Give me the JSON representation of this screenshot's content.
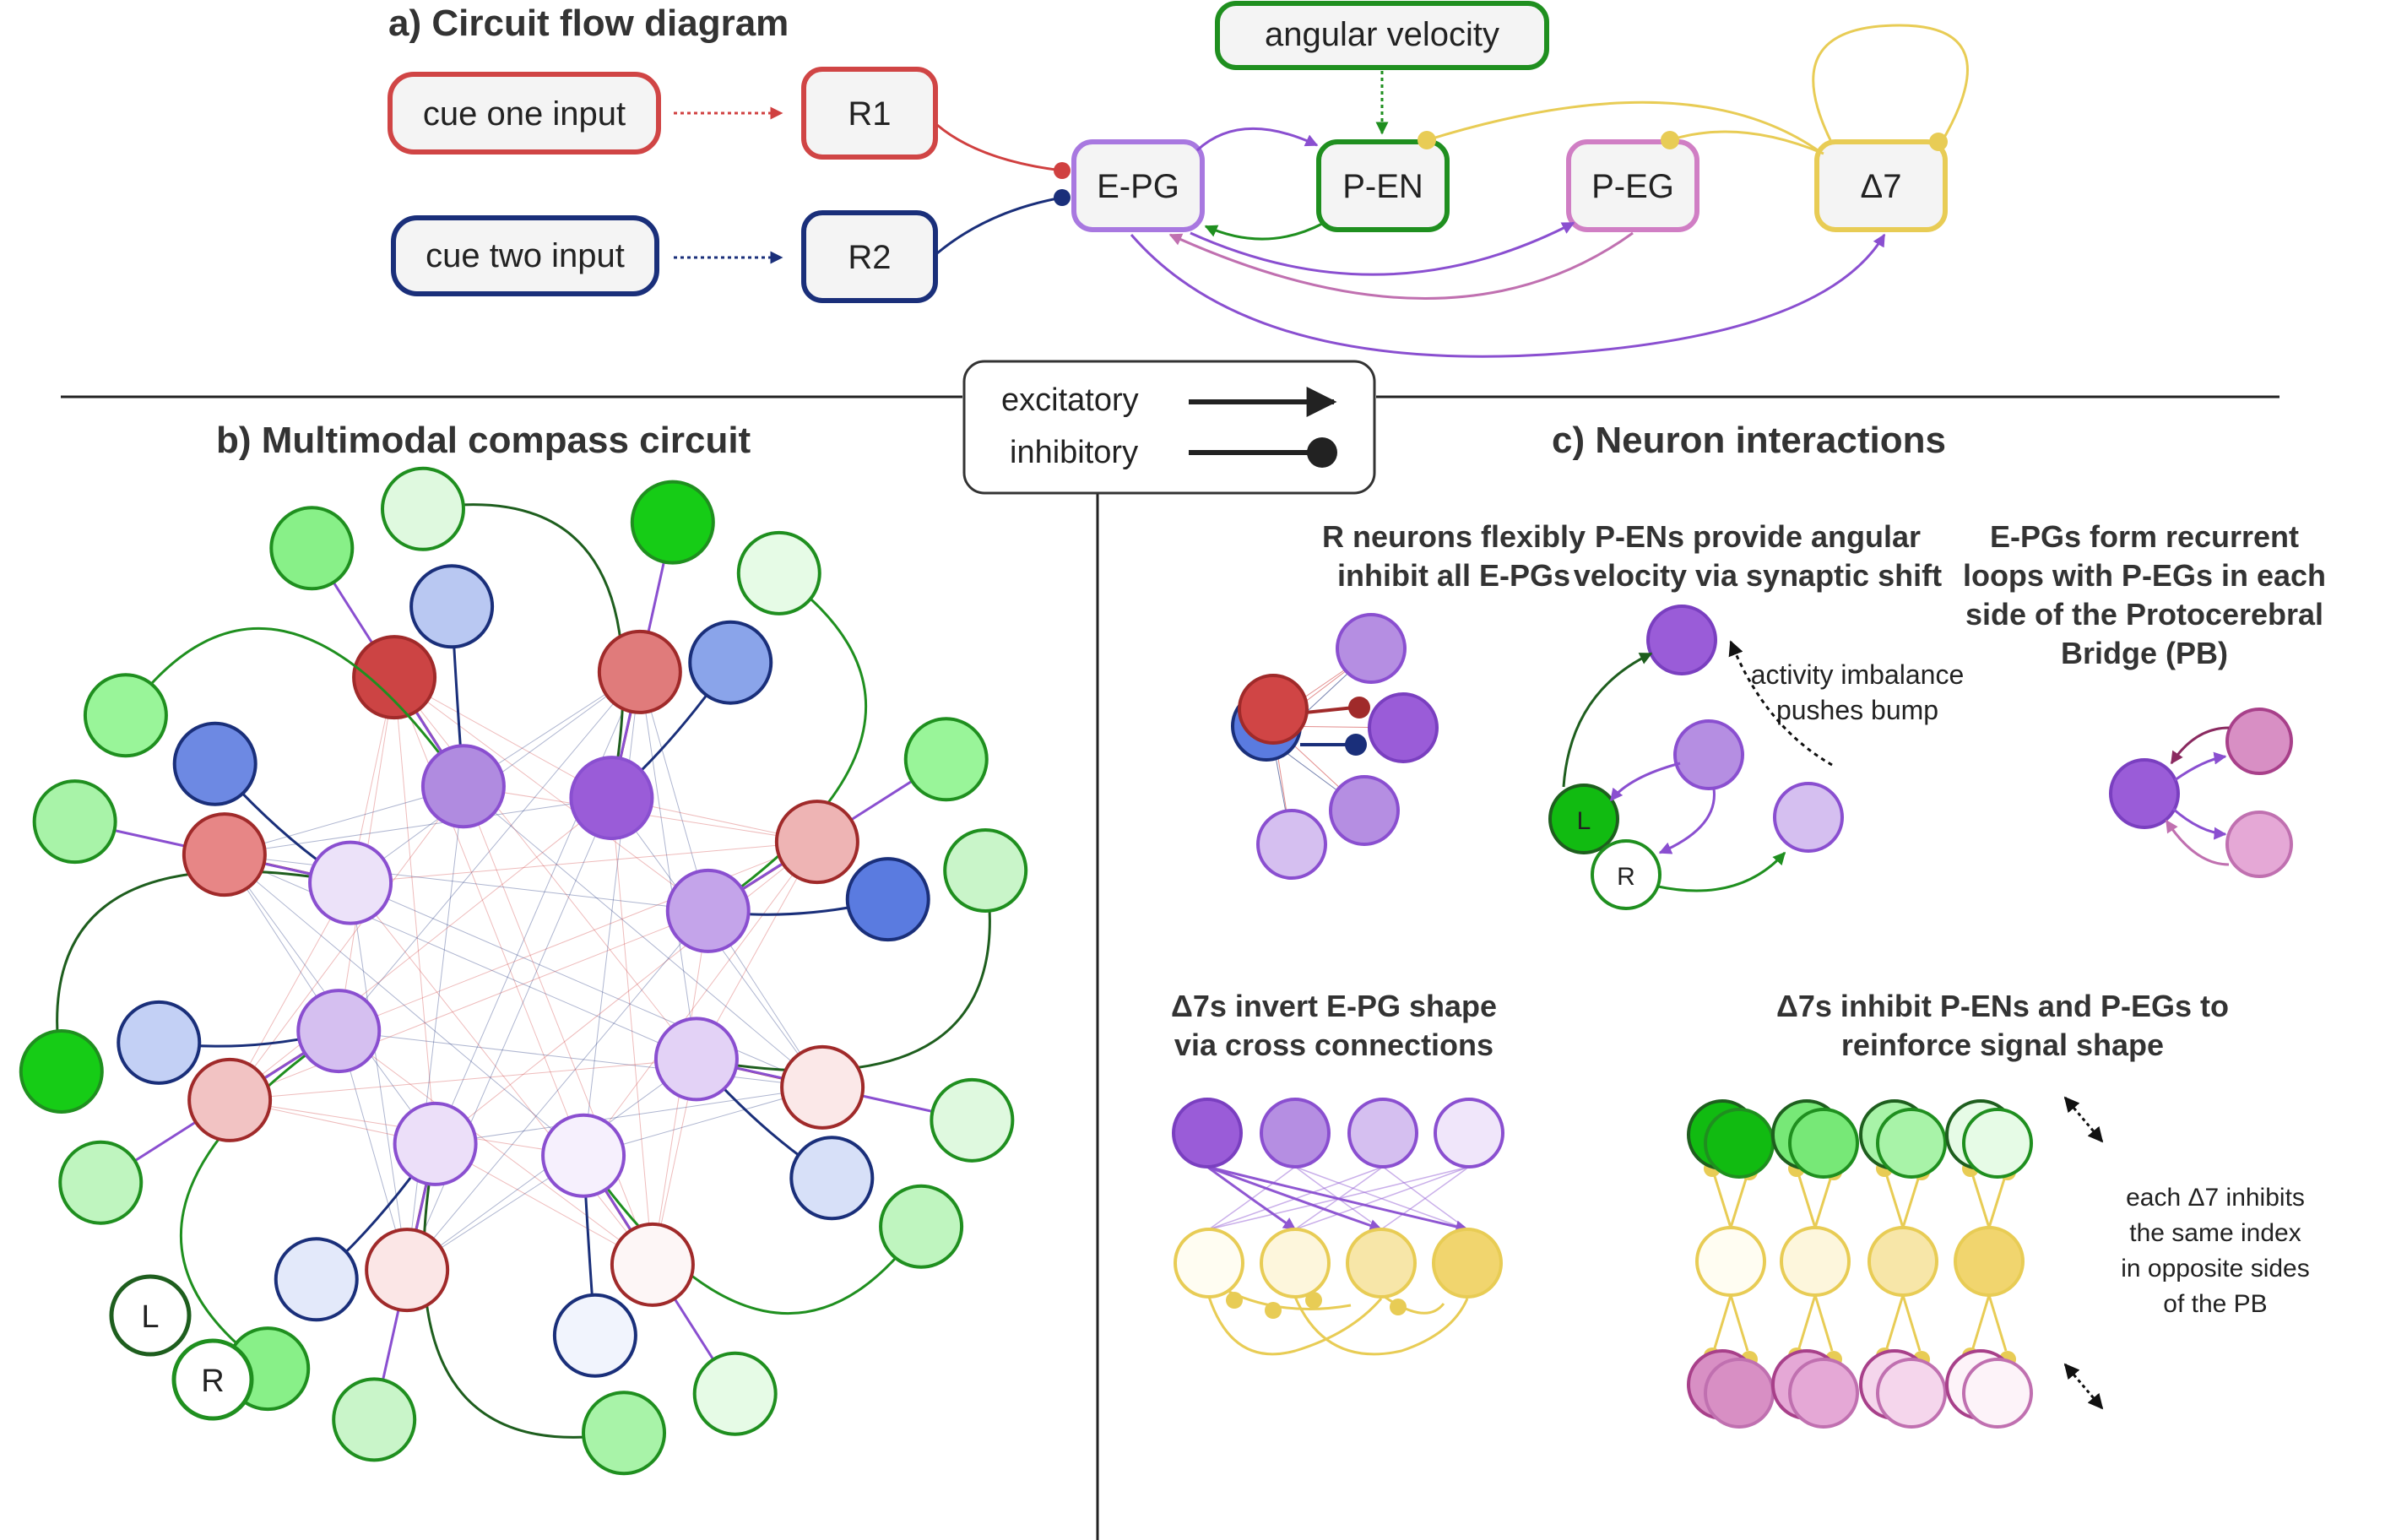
{
  "panel_a": {
    "title": "a) Circuit flow diagram",
    "cue_one": "cue one input",
    "cue_two": "cue two input",
    "r1": "R1",
    "r2": "R2",
    "epg": "E-PG",
    "pen": "P-EN",
    "peg": "P-EG",
    "d7": "Δ7",
    "angular_velocity": "angular velocity"
  },
  "legend": {
    "excitatory": "excitatory",
    "inhibitory": "inhibitory"
  },
  "panel_b": {
    "title": "b) Multimodal compass circuit",
    "left_label": "L",
    "right_label": "R"
  },
  "panel_c": {
    "title": "c) Neuron interactions",
    "r_neurons": [
      "R neurons flexibly",
      "inhibit all E-PGs"
    ],
    "pens": [
      "P-ENs provide angular",
      "velocity via synaptic shift"
    ],
    "activity": [
      "activity imbalance",
      "pushes bump"
    ],
    "epgs_loops": [
      "E-PGs form recurrent",
      "loops with P-EGs in each",
      "side of the Protocerebral",
      "Bridge (PB)"
    ],
    "d7_invert": [
      "Δ7s invert E-PG shape",
      "via cross connections"
    ],
    "d7_inhibit": [
      "Δ7s inhibit P-ENs and P-EGs to",
      "reinforce  signal shape"
    ],
    "each_d7": [
      "each Δ7 inhibits",
      "the same index",
      "in opposite sides",
      "of the PB"
    ],
    "l_label": "L",
    "r_label": "R"
  },
  "colors": {
    "red": "#cc4444",
    "blue": "#1a2f7a",
    "purple": "#8a4fd0",
    "green": "#1f8f1f",
    "dark_green": "#1e5e1e",
    "yellow": "#e8cc55",
    "pink": "#c070b0"
  }
}
